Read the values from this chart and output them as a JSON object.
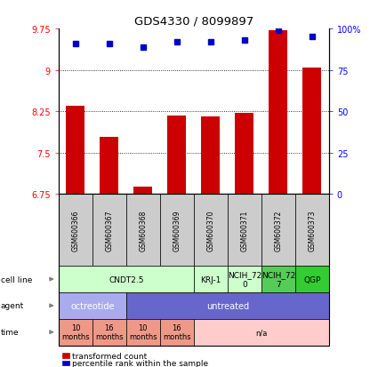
{
  "title": "GDS4330 / 8099897",
  "samples": [
    "GSM600366",
    "GSM600367",
    "GSM600368",
    "GSM600369",
    "GSM600370",
    "GSM600371",
    "GSM600372",
    "GSM600373"
  ],
  "bar_values": [
    8.35,
    7.78,
    6.88,
    8.18,
    8.16,
    8.22,
    9.72,
    9.05
  ],
  "dot_values": [
    91,
    91,
    89,
    92,
    92,
    93,
    99,
    95
  ],
  "ylim_left": [
    6.75,
    9.75
  ],
  "ylim_right": [
    0,
    100
  ],
  "yticks_left": [
    6.75,
    7.5,
    8.25,
    9.0,
    9.75
  ],
  "ytick_labels_left": [
    "6.75",
    "7.5",
    "8.25",
    "9",
    "9.75"
  ],
  "ytick_labels_right": [
    "0",
    "25",
    "50",
    "75",
    "100%"
  ],
  "ytick_vals_right": [
    0,
    25,
    50,
    75,
    100
  ],
  "grid_yticks": [
    7.5,
    8.25,
    9.0
  ],
  "bar_color": "#cc0000",
  "dot_color": "#0000cc",
  "bg_sample_color": "#cccccc",
  "cell_line_row": {
    "label": "cell line",
    "groups": [
      {
        "text": "CNDT2.5",
        "span": [
          0,
          4
        ],
        "color": "#ccffcc"
      },
      {
        "text": "KRJ-1",
        "span": [
          4,
          5
        ],
        "color": "#ccffcc"
      },
      {
        "text": "NCIH_72\n0",
        "span": [
          5,
          6
        ],
        "color": "#ccffcc"
      },
      {
        "text": "NCIH_72\n7",
        "span": [
          6,
          7
        ],
        "color": "#55cc55"
      },
      {
        "text": "QGP",
        "span": [
          7,
          8
        ],
        "color": "#33cc33"
      }
    ]
  },
  "agent_row": {
    "label": "agent",
    "groups": [
      {
        "text": "octreotide",
        "span": [
          0,
          2
        ],
        "color": "#aaaaee"
      },
      {
        "text": "untreated",
        "span": [
          2,
          8
        ],
        "color": "#6666cc"
      }
    ]
  },
  "time_row": {
    "label": "time",
    "groups": [
      {
        "text": "10\nmonths",
        "span": [
          0,
          1
        ],
        "color": "#ee9988"
      },
      {
        "text": "16\nmonths",
        "span": [
          1,
          2
        ],
        "color": "#ee9988"
      },
      {
        "text": "10\nmonths",
        "span": [
          2,
          3
        ],
        "color": "#ee9988"
      },
      {
        "text": "16\nmonths",
        "span": [
          3,
          4
        ],
        "color": "#ee9988"
      },
      {
        "text": "n/a",
        "span": [
          4,
          8
        ],
        "color": "#ffcccc"
      }
    ]
  },
  "legend_bar_color": "#cc0000",
  "legend_dot_color": "#0000cc",
  "legend_bar_label": "transformed count",
  "legend_dot_label": "percentile rank within the sample"
}
